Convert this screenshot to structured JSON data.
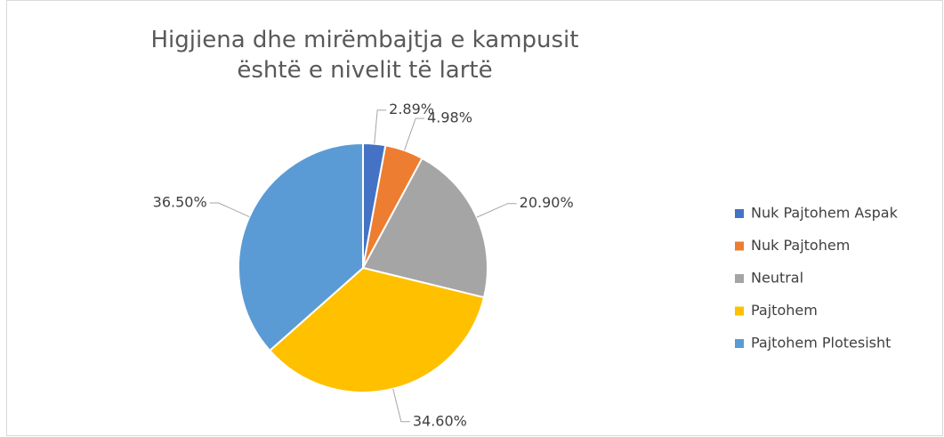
{
  "chart_data": {
    "type": "pie",
    "title": "Higjiena dhe mirëmbajtja e kampusit është e nivelit të lartë",
    "categories": [
      "Nuk Pajtohem Aspak",
      "Nuk Pajtohem",
      "Neutral",
      "Pajtohem",
      "Pajtohem Plotesisht"
    ],
    "values": [
      2.89,
      4.98,
      20.9,
      34.6,
      36.5
    ],
    "value_labels": [
      "2.89%",
      "4.98%",
      "20.90%",
      "34.60%",
      "36.50%"
    ],
    "colors": [
      "#4472c4",
      "#ed7d31",
      "#a5a5a5",
      "#ffc000",
      "#5b9bd5"
    ],
    "legend": "right"
  }
}
